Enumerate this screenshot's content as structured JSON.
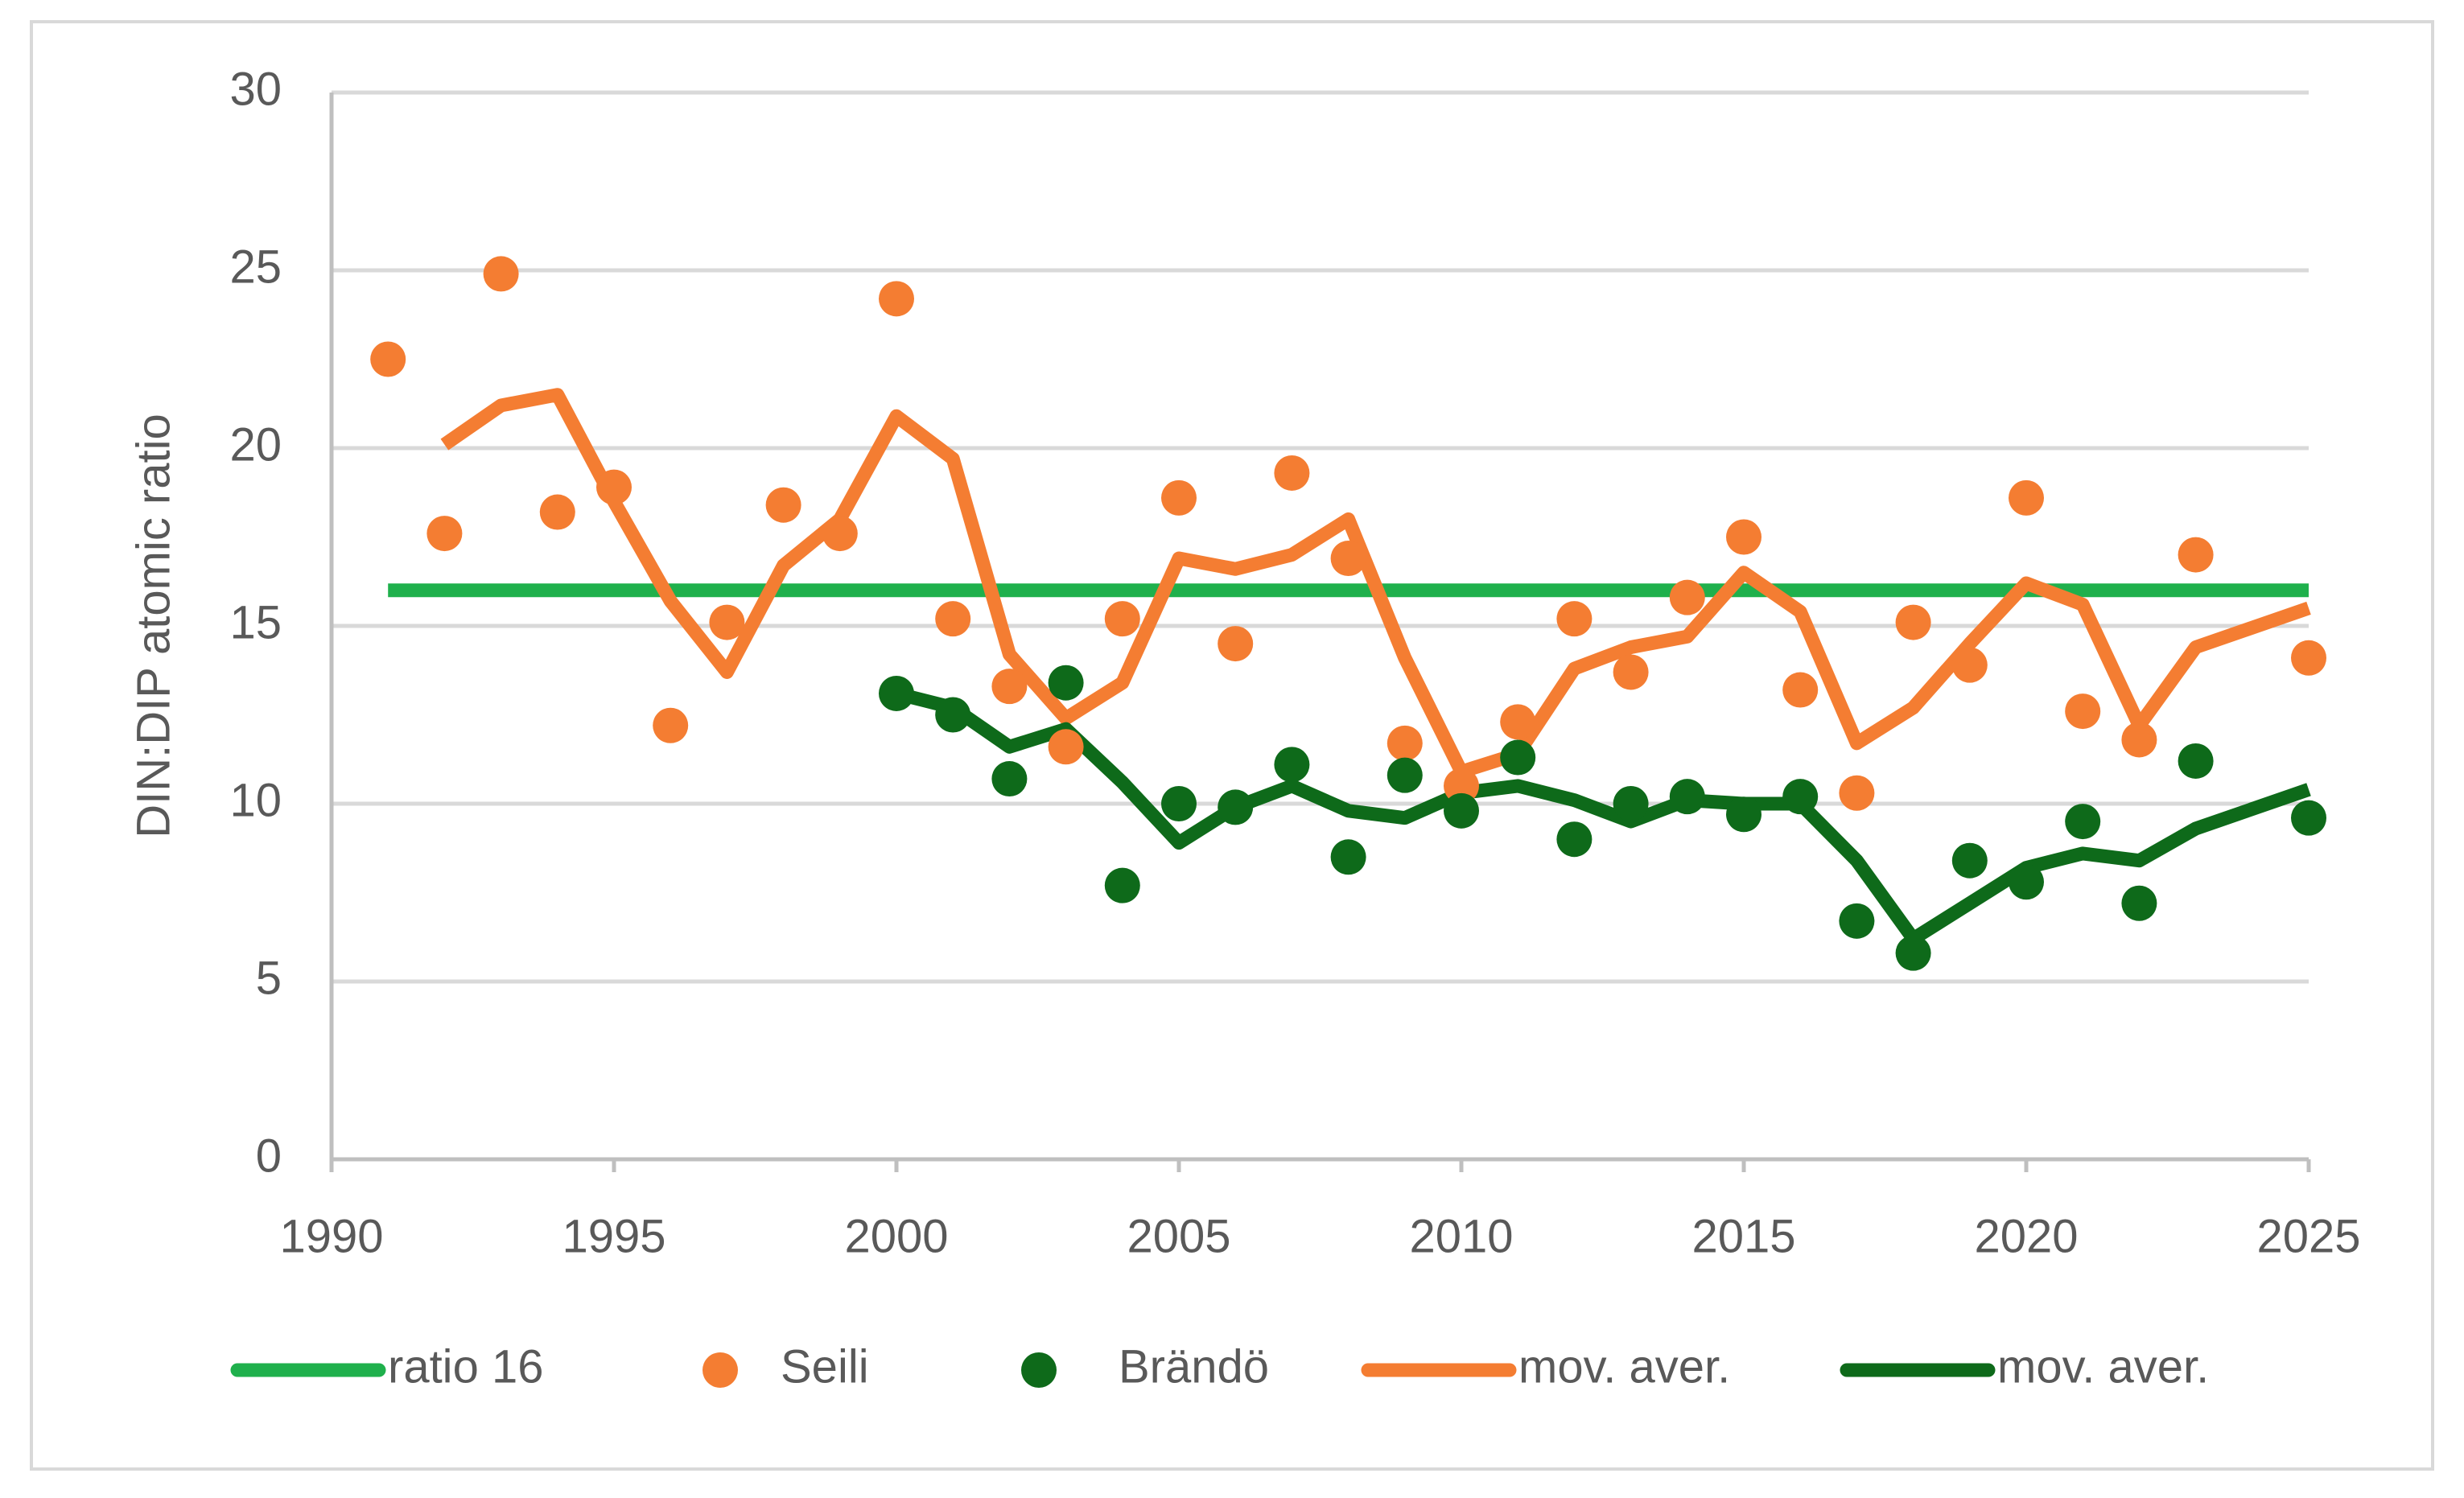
{
  "chart_data": {
    "type": "line",
    "y_label": "DIN:DIP atomic ratio",
    "x": [
      1991,
      1992,
      1993,
      1994,
      1995,
      1996,
      1997,
      1998,
      1999,
      2000,
      2001,
      2002,
      2003,
      2004,
      2005,
      2006,
      2007,
      2008,
      2009,
      2010,
      2011,
      2012,
      2013,
      2014,
      2015,
      2016,
      2017,
      2018,
      2019,
      2020,
      2021,
      2022,
      2023,
      2025
    ],
    "xlim": [
      1990,
      2025
    ],
    "xticks": [
      1990,
      1995,
      2000,
      2005,
      2010,
      2015,
      2020,
      2025
    ],
    "ylim": [
      0,
      30
    ],
    "yticks": [
      0,
      5,
      10,
      15,
      20,
      25,
      30
    ],
    "grid": true,
    "legend": "bottom",
    "series": [
      {
        "name": "ratio 16",
        "color": "#1fb04c",
        "mode": "line",
        "values": [
          16,
          16,
          16,
          16,
          16,
          16,
          16,
          16,
          16,
          16,
          16,
          16,
          16,
          16,
          16,
          16,
          16,
          16,
          16,
          16,
          16,
          16,
          16,
          16,
          16,
          16,
          16,
          16,
          16,
          16,
          16,
          16,
          16,
          16
        ]
      },
      {
        "name": "Seili",
        "color": "#f47d32",
        "mode": "markers",
        "values": [
          22.5,
          17.6,
          24.9,
          18.2,
          18.9,
          12.2,
          15.1,
          18.4,
          17.6,
          24.2,
          15.2,
          13.3,
          11.6,
          15.2,
          18.6,
          14.5,
          19.3,
          16.9,
          11.7,
          10.5,
          12.3,
          15.2,
          13.7,
          15.8,
          17.5,
          13.2,
          10.3,
          15.1,
          13.9,
          18.6,
          12.6,
          11.8,
          17.0,
          14.1
        ]
      },
      {
        "name": "Brändö",
        "color": "#0e6a1a",
        "mode": "markers",
        "values": [
          null,
          null,
          null,
          null,
          null,
          null,
          null,
          null,
          null,
          13.1,
          12.5,
          10.7,
          13.4,
          7.7,
          10.0,
          9.9,
          11.1,
          8.5,
          10.8,
          9.8,
          11.3,
          9.0,
          10.0,
          10.2,
          9.7,
          10.2,
          6.7,
          5.8,
          8.4,
          7.8,
          9.5,
          7.2,
          11.2,
          9.6
        ]
      },
      {
        "name": "mov. aver.",
        "color": "#f47d32",
        "mode": "line",
        "values": [
          null,
          20.1,
          21.2,
          21.5,
          18.5,
          15.7,
          13.7,
          16.7,
          18.0,
          20.9,
          19.7,
          14.2,
          12.4,
          13.4,
          16.9,
          16.6,
          17.0,
          18.0,
          14.1,
          10.9,
          11.4,
          13.8,
          14.4,
          14.7,
          16.5,
          15.4,
          11.7,
          12.7,
          14.5,
          16.2,
          15.6,
          12.2,
          14.4,
          15.5
        ]
      },
      {
        "name": "mov. aver.",
        "color": "#0e6a1a",
        "mode": "line",
        "values": [
          null,
          null,
          null,
          null,
          null,
          null,
          null,
          null,
          null,
          13.1,
          12.7,
          11.6,
          12.1,
          10.6,
          8.9,
          9.9,
          10.5,
          9.8,
          9.6,
          10.3,
          10.5,
          10.1,
          9.5,
          10.1,
          10.0,
          10.0,
          8.4,
          6.2,
          7.2,
          8.2,
          8.6,
          8.4,
          9.3,
          10.4
        ]
      }
    ]
  }
}
